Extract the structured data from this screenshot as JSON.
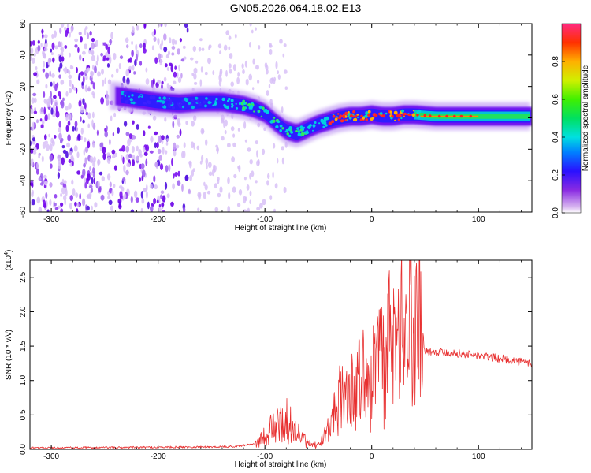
{
  "title": "GN05.2026.064.18.02.E13",
  "chart_data": [
    {
      "type": "heatmap",
      "name": "spectrogram",
      "xlabel": "Height of straight line (km)",
      "ylabel": "Frequency (Hz)",
      "xlim": [
        -320,
        150
      ],
      "ylim": [
        -60,
        60
      ],
      "xticks": [
        -300,
        -200,
        -100,
        0,
        100
      ],
      "yticks": [
        -60,
        -40,
        -20,
        0,
        20,
        40,
        60
      ],
      "colorbar": {
        "label": "Normalized spectral amplitude",
        "range": [
          0,
          1
        ],
        "ticks": [
          "0.0",
          "0.2",
          "0.4",
          "0.6",
          "0.8"
        ],
        "tick_values": [
          0,
          0.2,
          0.4,
          0.6,
          0.8
        ]
      },
      "ridge": {
        "description": "dominant frequency band vs height",
        "x": [
          -240,
          -220,
          -200,
          -180,
          -160,
          -140,
          -120,
          -110,
          -100,
          -90,
          -80,
          -70,
          -60,
          -50,
          -40,
          -30,
          -20,
          -10,
          0,
          10,
          20,
          30,
          40,
          60,
          80,
          100,
          120,
          150
        ],
        "y": [
          14,
          12,
          10,
          9,
          10,
          10,
          8,
          6,
          3,
          -3,
          -8,
          -10,
          -7,
          -4,
          -2,
          0,
          1,
          1,
          2,
          1,
          1,
          2,
          2,
          1,
          1,
          1,
          1,
          1
        ]
      },
      "noise_region": [
        -320,
        -120
      ],
      "strong_region": [
        -30,
        100
      ]
    },
    {
      "type": "line",
      "name": "snr",
      "xlabel": "Height of straight line (km)",
      "ylabel": "SNR (10 * v/v)",
      "yscale_label": "(x10^4)",
      "xlim": [
        -320,
        150
      ],
      "ylim": [
        0,
        2.75
      ],
      "xticks": [
        -300,
        -200,
        -100,
        0,
        100
      ],
      "yticks": [
        0.0,
        0.5,
        1.0,
        1.5,
        2.0,
        2.5
      ],
      "ytick_labels": [
        "0.0",
        "0.5",
        "1.0",
        "1.5",
        "2.0",
        "2.5"
      ],
      "color": "#e83030",
      "series": [
        {
          "name": "SNR",
          "x": [
            -320,
            -200,
            -130,
            -110,
            -100,
            -90,
            -80,
            -70,
            -60,
            -50,
            -40,
            -35,
            -30,
            -20,
            -10,
            0,
            10,
            20,
            30,
            40,
            45,
            50,
            60,
            80,
            100,
            120,
            150
          ],
          "y": [
            0.02,
            0.03,
            0.04,
            0.08,
            0.2,
            0.35,
            0.42,
            0.25,
            0.08,
            0.05,
            0.3,
            0.5,
            0.7,
            0.85,
            1.0,
            1.15,
            1.3,
            1.5,
            1.7,
            1.8,
            2.0,
            1.42,
            1.42,
            1.4,
            1.36,
            1.32,
            1.25
          ]
        }
      ]
    }
  ]
}
